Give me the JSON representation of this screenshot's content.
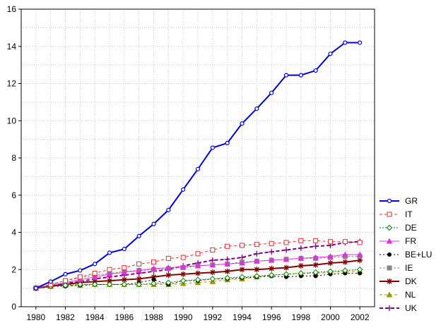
{
  "chart_data": {
    "type": "line",
    "title": "",
    "xlabel": "",
    "ylabel": "",
    "xlim": [
      1979,
      2003
    ],
    "ylim": [
      0,
      16
    ],
    "grid": true,
    "legend_position": "right",
    "x": [
      1980,
      1981,
      1982,
      1983,
      1984,
      1985,
      1986,
      1987,
      1988,
      1989,
      1990,
      1991,
      1992,
      1993,
      1994,
      1995,
      1996,
      1997,
      1998,
      1999,
      2000,
      2001,
      2002
    ],
    "x_ticks": [
      1980,
      1982,
      1984,
      1986,
      1988,
      1990,
      1992,
      1994,
      1996,
      1998,
      2000,
      2002
    ],
    "y_ticks": [
      0,
      2,
      4,
      6,
      8,
      10,
      12,
      14,
      16
    ],
    "series": [
      {
        "name": "GR",
        "color": "#0000cc",
        "dash": "",
        "marker": "circle",
        "width": 2,
        "values": [
          1.0,
          1.35,
          1.75,
          1.95,
          2.3,
          2.9,
          3.1,
          3.8,
          4.45,
          5.2,
          6.3,
          7.4,
          8.55,
          8.8,
          9.85,
          10.65,
          11.5,
          12.45,
          12.45,
          12.7,
          13.6,
          14.2,
          14.2
        ]
      },
      {
        "name": "IT",
        "color": "#e03030",
        "dash": "4,3",
        "marker": "square",
        "width": 1,
        "values": [
          1.0,
          1.2,
          1.4,
          1.6,
          1.8,
          2.0,
          2.1,
          2.3,
          2.4,
          2.6,
          2.65,
          2.85,
          3.05,
          3.25,
          3.3,
          3.35,
          3.4,
          3.45,
          3.55,
          3.55,
          3.5,
          3.5,
          3.45
        ]
      },
      {
        "name": "DE",
        "color": "#008000",
        "dash": "2,2",
        "marker": "diamond",
        "width": 1,
        "values": [
          1.0,
          1.1,
          1.15,
          1.2,
          1.2,
          1.2,
          1.2,
          1.2,
          1.25,
          1.3,
          1.4,
          1.45,
          1.5,
          1.55,
          1.6,
          1.65,
          1.7,
          1.75,
          1.8,
          1.85,
          1.9,
          1.95,
          2.0
        ]
      },
      {
        "name": "FR",
        "color": "#dd33dd",
        "dash": "",
        "marker": "triangle",
        "width": 1,
        "values": [
          1.0,
          1.15,
          1.3,
          1.45,
          1.6,
          1.75,
          1.85,
          1.95,
          2.05,
          2.1,
          2.15,
          2.2,
          2.25,
          2.3,
          2.35,
          2.45,
          2.5,
          2.55,
          2.6,
          2.65,
          2.7,
          2.8,
          2.8
        ]
      },
      {
        "name": "BE+LU",
        "color": "#000000",
        "dash": "2,3",
        "marker": "dot",
        "width": 1,
        "values": [
          1.0,
          1.1,
          1.1,
          1.15,
          1.2,
          1.2,
          1.2,
          1.3,
          1.45,
          1.2,
          1.4,
          1.4,
          1.5,
          1.5,
          1.55,
          1.6,
          1.65,
          1.6,
          1.65,
          1.65,
          1.75,
          1.8,
          1.8
        ]
      },
      {
        "name": "IE",
        "color": "#888888",
        "dash": "3,2",
        "marker": "square-filled",
        "width": 1,
        "values": [
          1.0,
          1.2,
          1.4,
          1.55,
          1.7,
          1.8,
          1.9,
          1.95,
          2.0,
          2.05,
          2.1,
          2.2,
          2.25,
          2.3,
          2.4,
          2.45,
          2.5,
          2.55,
          2.6,
          2.6,
          2.65,
          2.7,
          2.7
        ]
      },
      {
        "name": "DK",
        "color": "#800000",
        "dash": "",
        "marker": "star",
        "width": 2,
        "values": [
          1.0,
          1.1,
          1.2,
          1.3,
          1.35,
          1.4,
          1.45,
          1.5,
          1.6,
          1.7,
          1.75,
          1.8,
          1.85,
          1.9,
          2.0,
          2.0,
          2.05,
          2.1,
          2.2,
          2.25,
          2.35,
          2.4,
          2.5
        ]
      },
      {
        "name": "NL",
        "color": "#999900",
        "dash": "4,3",
        "marker": "triangle-filled",
        "width": 1,
        "values": [
          1.0,
          1.1,
          1.15,
          1.15,
          1.2,
          1.2,
          1.2,
          1.2,
          1.2,
          1.2,
          1.25,
          1.3,
          1.35,
          1.45,
          1.5,
          1.6,
          1.7,
          1.75,
          1.8,
          1.8,
          1.85,
          1.9,
          1.9
        ]
      },
      {
        "name": "UK",
        "color": "#800080",
        "dash": "5,3",
        "marker": "plus",
        "width": 2,
        "values": [
          1.0,
          1.1,
          1.25,
          1.35,
          1.5,
          1.6,
          1.7,
          1.8,
          1.9,
          2.0,
          2.2,
          2.35,
          2.5,
          2.55,
          2.65,
          2.85,
          2.95,
          3.05,
          3.15,
          3.25,
          3.3,
          3.45,
          3.5
        ]
      }
    ]
  }
}
